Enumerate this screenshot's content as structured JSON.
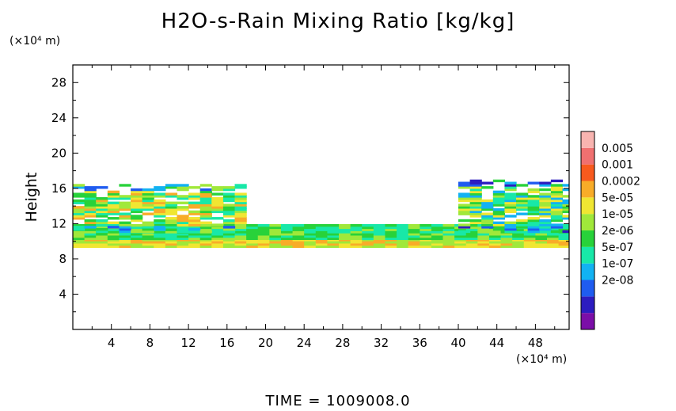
{
  "chart_data": {
    "type": "heatmap",
    "title": "H2O-s-Rain Mixing Ratio [kg/kg]",
    "ylabel": "Height",
    "x_unit": "(×10⁴ m)",
    "y_unit": "(×10⁴ m)",
    "footer": "TIME = 1009008.0",
    "xlim": [
      0,
      51.5
    ],
    "ylim": [
      0,
      30
    ],
    "x_ticks": [
      "4",
      "8",
      "12",
      "16",
      "20",
      "24",
      "28",
      "32",
      "36",
      "40",
      "44",
      "48"
    ],
    "y_ticks": [
      "4",
      "8",
      "12",
      "16",
      "20",
      "24",
      "28"
    ],
    "colorbar": {
      "labels": [
        "0.005",
        "0.001",
        "0.0002",
        "5e-05",
        "1e-05",
        "2e-06",
        "5e-07",
        "1e-07",
        "2e-08"
      ],
      "colors": [
        "#7b0ea8",
        "#2c1cc0",
        "#1f5cf0",
        "#12b2f2",
        "#18e8a8",
        "#28d23a",
        "#a0e83a",
        "#f0e632",
        "#f8ac28",
        "#f85a1e",
        "#f07070",
        "#f8b4b0"
      ]
    },
    "layers": [
      {
        "name": "base",
        "y_bottom": 9.3,
        "y_top": 10.2,
        "x_start": 0,
        "x_end": 51.5,
        "level": 7
      },
      {
        "name": "mid",
        "y_bottom": 10.2,
        "y_top": 11.8,
        "x_start": 0,
        "x_end": 51.5,
        "level": 5
      },
      {
        "name": "left-cloud",
        "y_bottom": 11,
        "y_top": 16.3,
        "x_start": 0,
        "x_end": 17,
        "level": 6
      },
      {
        "name": "right-cloud",
        "y_bottom": 11,
        "y_top": 16.8,
        "x_start": 40,
        "x_end": 51.5,
        "level": 5
      }
    ]
  }
}
